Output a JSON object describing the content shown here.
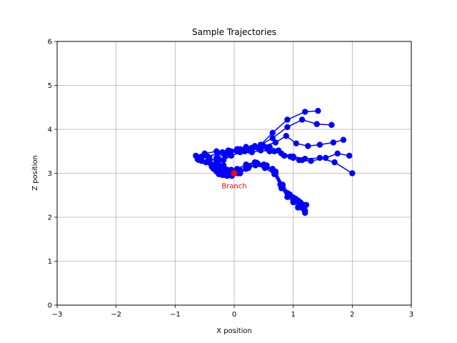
{
  "chart_data": {
    "type": "line",
    "title": "Sample Trajectories",
    "xlabel": "X position",
    "ylabel": "Z position",
    "xlim": [
      -3,
      3
    ],
    "ylim": [
      0,
      6
    ],
    "xticks": [
      -3,
      -2,
      -1,
      0,
      1,
      2,
      3
    ],
    "yticks": [
      0,
      1,
      2,
      3,
      4,
      5,
      6
    ],
    "grid": true,
    "series_color": "#0000ff",
    "annotation": {
      "text": "Branch",
      "x": 0,
      "y": 3,
      "color": "#ff0000"
    },
    "series": [
      {
        "x": [
          0,
          -0.08,
          -0.22,
          -0.32,
          -0.25,
          -0.15,
          -0.05,
          0.05,
          0.2,
          0.35,
          0.55,
          0.68,
          0.85,
          1.0,
          1.15
        ],
        "y": [
          3,
          3.05,
          3.12,
          3.2,
          3.3,
          3.4,
          3.5,
          3.55,
          3.6,
          3.62,
          3.58,
          3.5,
          3.4,
          3.35,
          3.3
        ]
      },
      {
        "x": [
          0,
          -0.05,
          -0.18,
          -0.3,
          -0.42,
          -0.55,
          -0.65,
          -0.5,
          -0.3,
          -0.1,
          0.1,
          0.3,
          0.5,
          0.7,
          0.88,
          1.05,
          1.25,
          1.45,
          1.68,
          1.85
        ],
        "y": [
          3,
          3.08,
          3.18,
          3.28,
          3.35,
          3.38,
          3.4,
          3.45,
          3.5,
          3.52,
          3.55,
          3.58,
          3.62,
          3.7,
          3.85,
          3.68,
          3.62,
          3.65,
          3.7,
          3.76
        ]
      },
      {
        "x": [
          0,
          -0.1,
          -0.25,
          -0.4,
          -0.55,
          -0.62,
          -0.45,
          -0.28,
          -0.1,
          0.05,
          0.18,
          0.3,
          0.45,
          0.6,
          0.8,
          1.0,
          1.2,
          1.45,
          1.7,
          2.0
        ],
        "y": [
          3,
          3.05,
          3.15,
          3.22,
          3.28,
          3.32,
          3.38,
          3.45,
          3.5,
          3.52,
          3.5,
          3.48,
          3.52,
          3.5,
          3.45,
          3.38,
          3.33,
          3.35,
          3.25,
          3.0
        ]
      },
      {
        "x": [
          0,
          -0.05,
          -0.12,
          -0.2,
          -0.28,
          -0.18,
          -0.05,
          0.1,
          0.25,
          0.42,
          0.6,
          0.75,
          0.95,
          1.1,
          1.3,
          1.55,
          1.75,
          1.95
        ],
        "y": [
          3,
          3.02,
          3.08,
          3.15,
          3.22,
          3.3,
          3.4,
          3.48,
          3.52,
          3.55,
          3.6,
          3.52,
          3.38,
          3.3,
          3.28,
          3.35,
          3.45,
          3.4
        ]
      },
      {
        "x": [
          0,
          -0.1,
          -0.22,
          -0.35,
          -0.48,
          -0.6,
          -0.45,
          -0.2,
          0.05,
          0.25,
          0.45,
          0.65,
          0.9,
          1.15,
          1.4,
          1.65
        ],
        "y": [
          3,
          3.05,
          3.12,
          3.18,
          3.25,
          3.3,
          3.38,
          3.48,
          3.52,
          3.55,
          3.65,
          3.8,
          4.05,
          4.22,
          4.12,
          4.1
        ]
      },
      {
        "x": [
          0,
          -0.08,
          -0.18,
          -0.3,
          -0.42,
          -0.3,
          -0.12,
          0.05,
          0.25,
          0.45,
          0.65,
          0.9,
          1.2,
          1.42
        ],
        "y": [
          3,
          3.03,
          3.1,
          3.18,
          3.26,
          3.35,
          3.45,
          3.5,
          3.55,
          3.65,
          3.92,
          4.22,
          4.4,
          4.42
        ]
      },
      {
        "x": [
          0,
          -0.1,
          -0.2,
          -0.3,
          -0.38,
          -0.25,
          -0.1,
          0.05,
          0.2,
          0.35,
          0.5,
          0.65,
          0.78,
          0.9,
          1.0,
          1.08,
          1.15
        ],
        "y": [
          3,
          3.02,
          3.08,
          3.12,
          3.15,
          3.1,
          3.06,
          3.1,
          3.2,
          3.25,
          3.2,
          3.1,
          2.75,
          2.55,
          2.45,
          2.38,
          2.3
        ]
      },
      {
        "x": [
          0,
          -0.08,
          -0.16,
          -0.24,
          -0.3,
          -0.18,
          -0.05,
          0.1,
          0.25,
          0.4,
          0.55,
          0.7,
          0.82,
          0.92,
          1.02,
          1.1,
          1.18
        ],
        "y": [
          3,
          3.0,
          3.04,
          3.06,
          3.08,
          3.04,
          3.0,
          3.05,
          3.15,
          3.22,
          3.15,
          3.0,
          2.7,
          2.5,
          2.38,
          2.28,
          2.18
        ]
      },
      {
        "x": [
          0,
          -0.06,
          -0.14,
          -0.22,
          -0.3,
          -0.2,
          -0.08,
          0.06,
          0.2,
          0.36,
          0.52,
          0.68,
          0.8,
          0.9,
          1.0,
          1.08,
          1.2
        ],
        "y": [
          3,
          2.98,
          3.0,
          3.02,
          3.04,
          3.0,
          2.96,
          3.0,
          3.1,
          3.18,
          3.12,
          2.98,
          2.66,
          2.46,
          2.34,
          2.22,
          2.1
        ]
      },
      {
        "x": [
          0,
          -0.1,
          -0.2,
          -0.3,
          -0.35,
          -0.22,
          -0.08,
          0.08,
          0.22,
          0.38,
          0.55,
          0.7,
          0.82,
          0.94,
          1.04,
          1.12,
          1.22
        ],
        "y": [
          3,
          3.04,
          3.1,
          3.14,
          3.1,
          3.06,
          3.02,
          3.08,
          3.18,
          3.24,
          3.18,
          3.04,
          2.74,
          2.52,
          2.42,
          2.34,
          2.28
        ]
      },
      {
        "x": [
          0,
          -0.05,
          -0.12,
          -0.2,
          -0.26,
          -0.16,
          -0.04,
          0.1,
          0.24,
          0.38,
          0.54,
          0.68,
          0.8,
          0.92,
          1.02,
          1.12,
          1.2
        ],
        "y": [
          3,
          2.96,
          2.94,
          2.96,
          2.98,
          2.96,
          2.94,
          3.0,
          3.12,
          3.2,
          3.14,
          3.02,
          2.7,
          2.48,
          2.36,
          2.25,
          2.15
        ]
      }
    ]
  }
}
